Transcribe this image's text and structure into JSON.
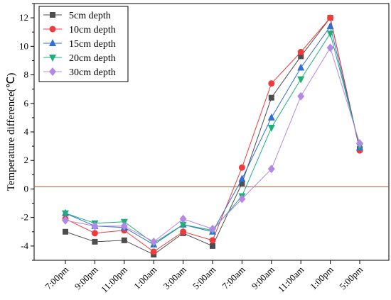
{
  "chart_data": {
    "type": "line",
    "title": "",
    "xlabel": "",
    "ylabel": "Temperature difference(℃)",
    "categories": [
      "7:00pm",
      "9:00pm",
      "11:00pm",
      "1:00am",
      "3:00am",
      "5:00am",
      "7:00am",
      "9:00am",
      "11:00am",
      "1:00pm",
      "5:00pm"
    ],
    "ylim": [
      -5,
      13
    ],
    "yticks": [
      -4,
      -2,
      0,
      2,
      4,
      6,
      8,
      10,
      12
    ],
    "reference_line": {
      "y": 0.15,
      "color": "#a0522d"
    },
    "legend_position": "top-left",
    "grid": false,
    "series": [
      {
        "name": "5cm depth",
        "color": "#4d4d4d",
        "marker": "square",
        "values": [
          -3.0,
          -3.7,
          -3.6,
          -4.6,
          -3.1,
          -4.0,
          0.4,
          6.4,
          9.3,
          12.0,
          2.8
        ]
      },
      {
        "name": "10cm depth",
        "color": "#ef3b3b",
        "marker": "circle",
        "values": [
          -2.1,
          -3.1,
          -2.9,
          -4.4,
          -3.0,
          -3.6,
          1.5,
          7.4,
          9.6,
          12.0,
          2.7
        ]
      },
      {
        "name": "15cm depth",
        "color": "#2f6fd6",
        "marker": "triangle-up",
        "values": [
          -1.7,
          -2.6,
          -2.7,
          -3.9,
          -2.5,
          -3.0,
          0.7,
          5.0,
          8.5,
          11.4,
          2.9
        ]
      },
      {
        "name": "20cm depth",
        "color": "#1fae7a",
        "marker": "triangle-down",
        "values": [
          -1.7,
          -2.4,
          -2.3,
          -3.8,
          -2.5,
          -2.9,
          -0.5,
          4.3,
          7.7,
          10.9,
          3.0
        ]
      },
      {
        "name": "30cm depth",
        "color": "#b389e6",
        "marker": "diamond",
        "values": [
          -2.2,
          -2.6,
          -2.6,
          -3.7,
          -2.1,
          -2.8,
          -0.7,
          1.4,
          6.5,
          9.9,
          3.2
        ]
      }
    ]
  }
}
